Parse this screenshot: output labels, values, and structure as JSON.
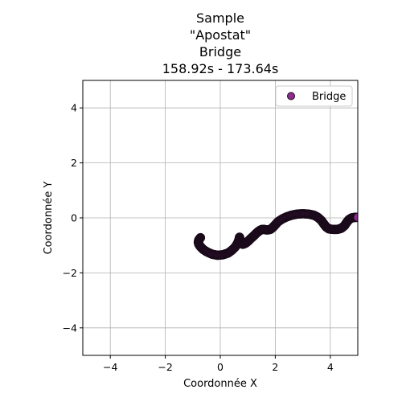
{
  "chart_data": {
    "type": "scatter",
    "title_lines": [
      "Sample",
      "\"Apostat\"",
      "Bridge",
      "158.92s - 173.64s"
    ],
    "xlabel": "Coordonnée X",
    "ylabel": "Coordonnée Y",
    "xlim": [
      -5,
      5
    ],
    "ylim": [
      -5,
      5
    ],
    "xticks": [
      -4,
      -2,
      0,
      2,
      4
    ],
    "yticks": [
      -4,
      -2,
      0,
      2,
      4
    ],
    "xtick_labels": [
      "−4",
      "−2",
      "0",
      "2",
      "4"
    ],
    "ytick_labels": [
      "−4",
      "−2",
      "0",
      "2",
      "4"
    ],
    "grid": true,
    "legend_position": "top-right",
    "series": [
      {
        "name": "Bridge",
        "marker_fill": "#8e2c8e",
        "marker_edge": "#1a0a1a",
        "x": [
          -0.72,
          -0.78,
          -0.8,
          -0.78,
          -0.72,
          -0.62,
          -0.48,
          -0.3,
          -0.1,
          0.1,
          0.28,
          0.42,
          0.55,
          0.63,
          0.68,
          0.7,
          0.72,
          0.75,
          0.82,
          0.92,
          1.02,
          1.12,
          1.22,
          1.3,
          1.38,
          1.45,
          1.52,
          1.6,
          1.7,
          1.82,
          1.92,
          2.0,
          2.1,
          2.25,
          2.42,
          2.6,
          2.8,
          3.0,
          3.2,
          3.4,
          3.55,
          3.68,
          3.78,
          3.85,
          3.95,
          4.1,
          4.25,
          4.4,
          4.52,
          4.6,
          4.68,
          4.78,
          4.9,
          5.0
        ],
        "y": [
          -0.72,
          -0.8,
          -0.88,
          -0.96,
          -1.05,
          -1.15,
          -1.24,
          -1.32,
          -1.36,
          -1.34,
          -1.28,
          -1.18,
          -1.05,
          -0.92,
          -0.8,
          -0.7,
          -0.82,
          -0.92,
          -0.96,
          -0.92,
          -0.84,
          -0.74,
          -0.65,
          -0.57,
          -0.5,
          -0.45,
          -0.42,
          -0.42,
          -0.44,
          -0.42,
          -0.34,
          -0.25,
          -0.14,
          -0.04,
          0.04,
          0.1,
          0.14,
          0.15,
          0.14,
          0.1,
          0.02,
          -0.1,
          -0.24,
          -0.33,
          -0.4,
          -0.42,
          -0.42,
          -0.38,
          -0.28,
          -0.16,
          -0.06,
          0.0,
          0.02,
          0.02
        ]
      }
    ]
  }
}
